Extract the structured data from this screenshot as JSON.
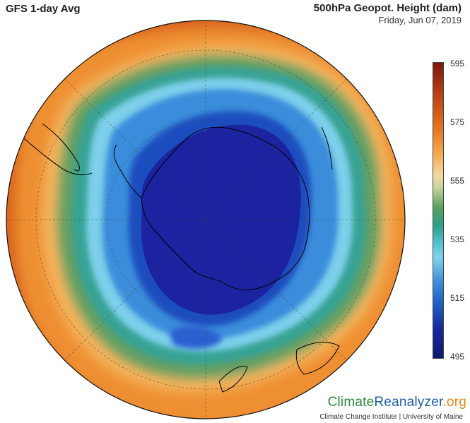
{
  "header": {
    "left_title": "GFS 1-day Avg",
    "right_title": "500hPa Geopot. Height (dam)",
    "date": "Friday, Jun 07, 2019"
  },
  "colorbar": {
    "ticks": [
      "595",
      "575",
      "555",
      "535",
      "515",
      "495"
    ],
    "min": 495,
    "max": 595
  },
  "logo": {
    "part1": "Climate",
    "part2": "Reanalyzer",
    "part3": ".org",
    "subtitle": "Climate Change Institute | University of Maine"
  },
  "colors": {
    "ring_orange": "#ea8a2a",
    "ring_green": "#4f9e6a",
    "ring_cyan": "#6fc8e8",
    "core_blue": "#1d3aa8",
    "core_darkblue": "#1a1f8c",
    "coast_line": "#000000"
  }
}
